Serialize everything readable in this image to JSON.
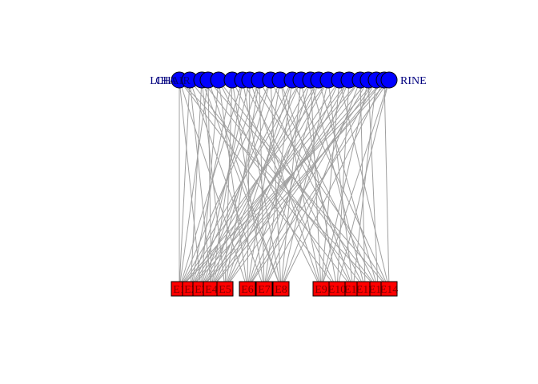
{
  "graph": {
    "type": "bipartite",
    "colors": {
      "top_nodes": "#0000ff",
      "bottom_nodes": "#ff0000",
      "edges": "#a0a0a0",
      "top_labels": "#00007f",
      "bottom_labels": "#7f0000"
    },
    "top_labels": [
      "CHAIR",
      "LIHA",
      "",
      "",
      "",
      "",
      "",
      "",
      "",
      "",
      "",
      "",
      "",
      "",
      "",
      "",
      "",
      "",
      "",
      "",
      "",
      "",
      "RINE"
    ],
    "bottom_labels": [
      "E1",
      "E2",
      "E3",
      "E4",
      "E5",
      "E6",
      "E7",
      "E8",
      "E9",
      "E10",
      "E11",
      "E12",
      "E13",
      "E14"
    ],
    "edges": [
      [
        0,
        0
      ],
      [
        0,
        2
      ],
      [
        0,
        5
      ],
      [
        0,
        9
      ],
      [
        0,
        12
      ],
      [
        1,
        0
      ],
      [
        1,
        3
      ],
      [
        1,
        6
      ],
      [
        1,
        10
      ],
      [
        2,
        1
      ],
      [
        2,
        4
      ],
      [
        2,
        7
      ],
      [
        2,
        11
      ],
      [
        3,
        0
      ],
      [
        3,
        3
      ],
      [
        3,
        7
      ],
      [
        3,
        13
      ],
      [
        4,
        2
      ],
      [
        4,
        5
      ],
      [
        4,
        8
      ],
      [
        4,
        12
      ],
      [
        5,
        1
      ],
      [
        5,
        4
      ],
      [
        5,
        6
      ],
      [
        5,
        9
      ],
      [
        6,
        0
      ],
      [
        6,
        3
      ],
      [
        6,
        7
      ],
      [
        6,
        10
      ],
      [
        7,
        2
      ],
      [
        7,
        5
      ],
      [
        7,
        8
      ],
      [
        7,
        13
      ],
      [
        8,
        1
      ],
      [
        8,
        4
      ],
      [
        8,
        6
      ],
      [
        8,
        11
      ],
      [
        9,
        0
      ],
      [
        9,
        3
      ],
      [
        9,
        7
      ],
      [
        9,
        12
      ],
      [
        10,
        2
      ],
      [
        10,
        5
      ],
      [
        10,
        8
      ],
      [
        10,
        10
      ],
      [
        11,
        1
      ],
      [
        11,
        4
      ],
      [
        11,
        6
      ],
      [
        11,
        13
      ],
      [
        12,
        0
      ],
      [
        12,
        3
      ],
      [
        12,
        7
      ],
      [
        12,
        9
      ],
      [
        13,
        2
      ],
      [
        13,
        5
      ],
      [
        13,
        8
      ],
      [
        13,
        11
      ],
      [
        14,
        1
      ],
      [
        14,
        4
      ],
      [
        14,
        6
      ],
      [
        14,
        12
      ],
      [
        15,
        0
      ],
      [
        15,
        3
      ],
      [
        15,
        7
      ],
      [
        15,
        10
      ],
      [
        16,
        2
      ],
      [
        16,
        5
      ],
      [
        16,
        8
      ],
      [
        16,
        13
      ],
      [
        17,
        1
      ],
      [
        17,
        4
      ],
      [
        17,
        6
      ],
      [
        17,
        9
      ],
      [
        18,
        0
      ],
      [
        18,
        3
      ],
      [
        18,
        7
      ],
      [
        18,
        11
      ],
      [
        19,
        2
      ],
      [
        19,
        5
      ],
      [
        19,
        8
      ],
      [
        19,
        12
      ],
      [
        20,
        1
      ],
      [
        20,
        4
      ],
      [
        20,
        6
      ],
      [
        20,
        10
      ],
      [
        21,
        0
      ],
      [
        21,
        3
      ],
      [
        21,
        7
      ],
      [
        21,
        13
      ],
      [
        22,
        2
      ],
      [
        22,
        5
      ],
      [
        22,
        8
      ],
      [
        22,
        9
      ]
    ]
  }
}
